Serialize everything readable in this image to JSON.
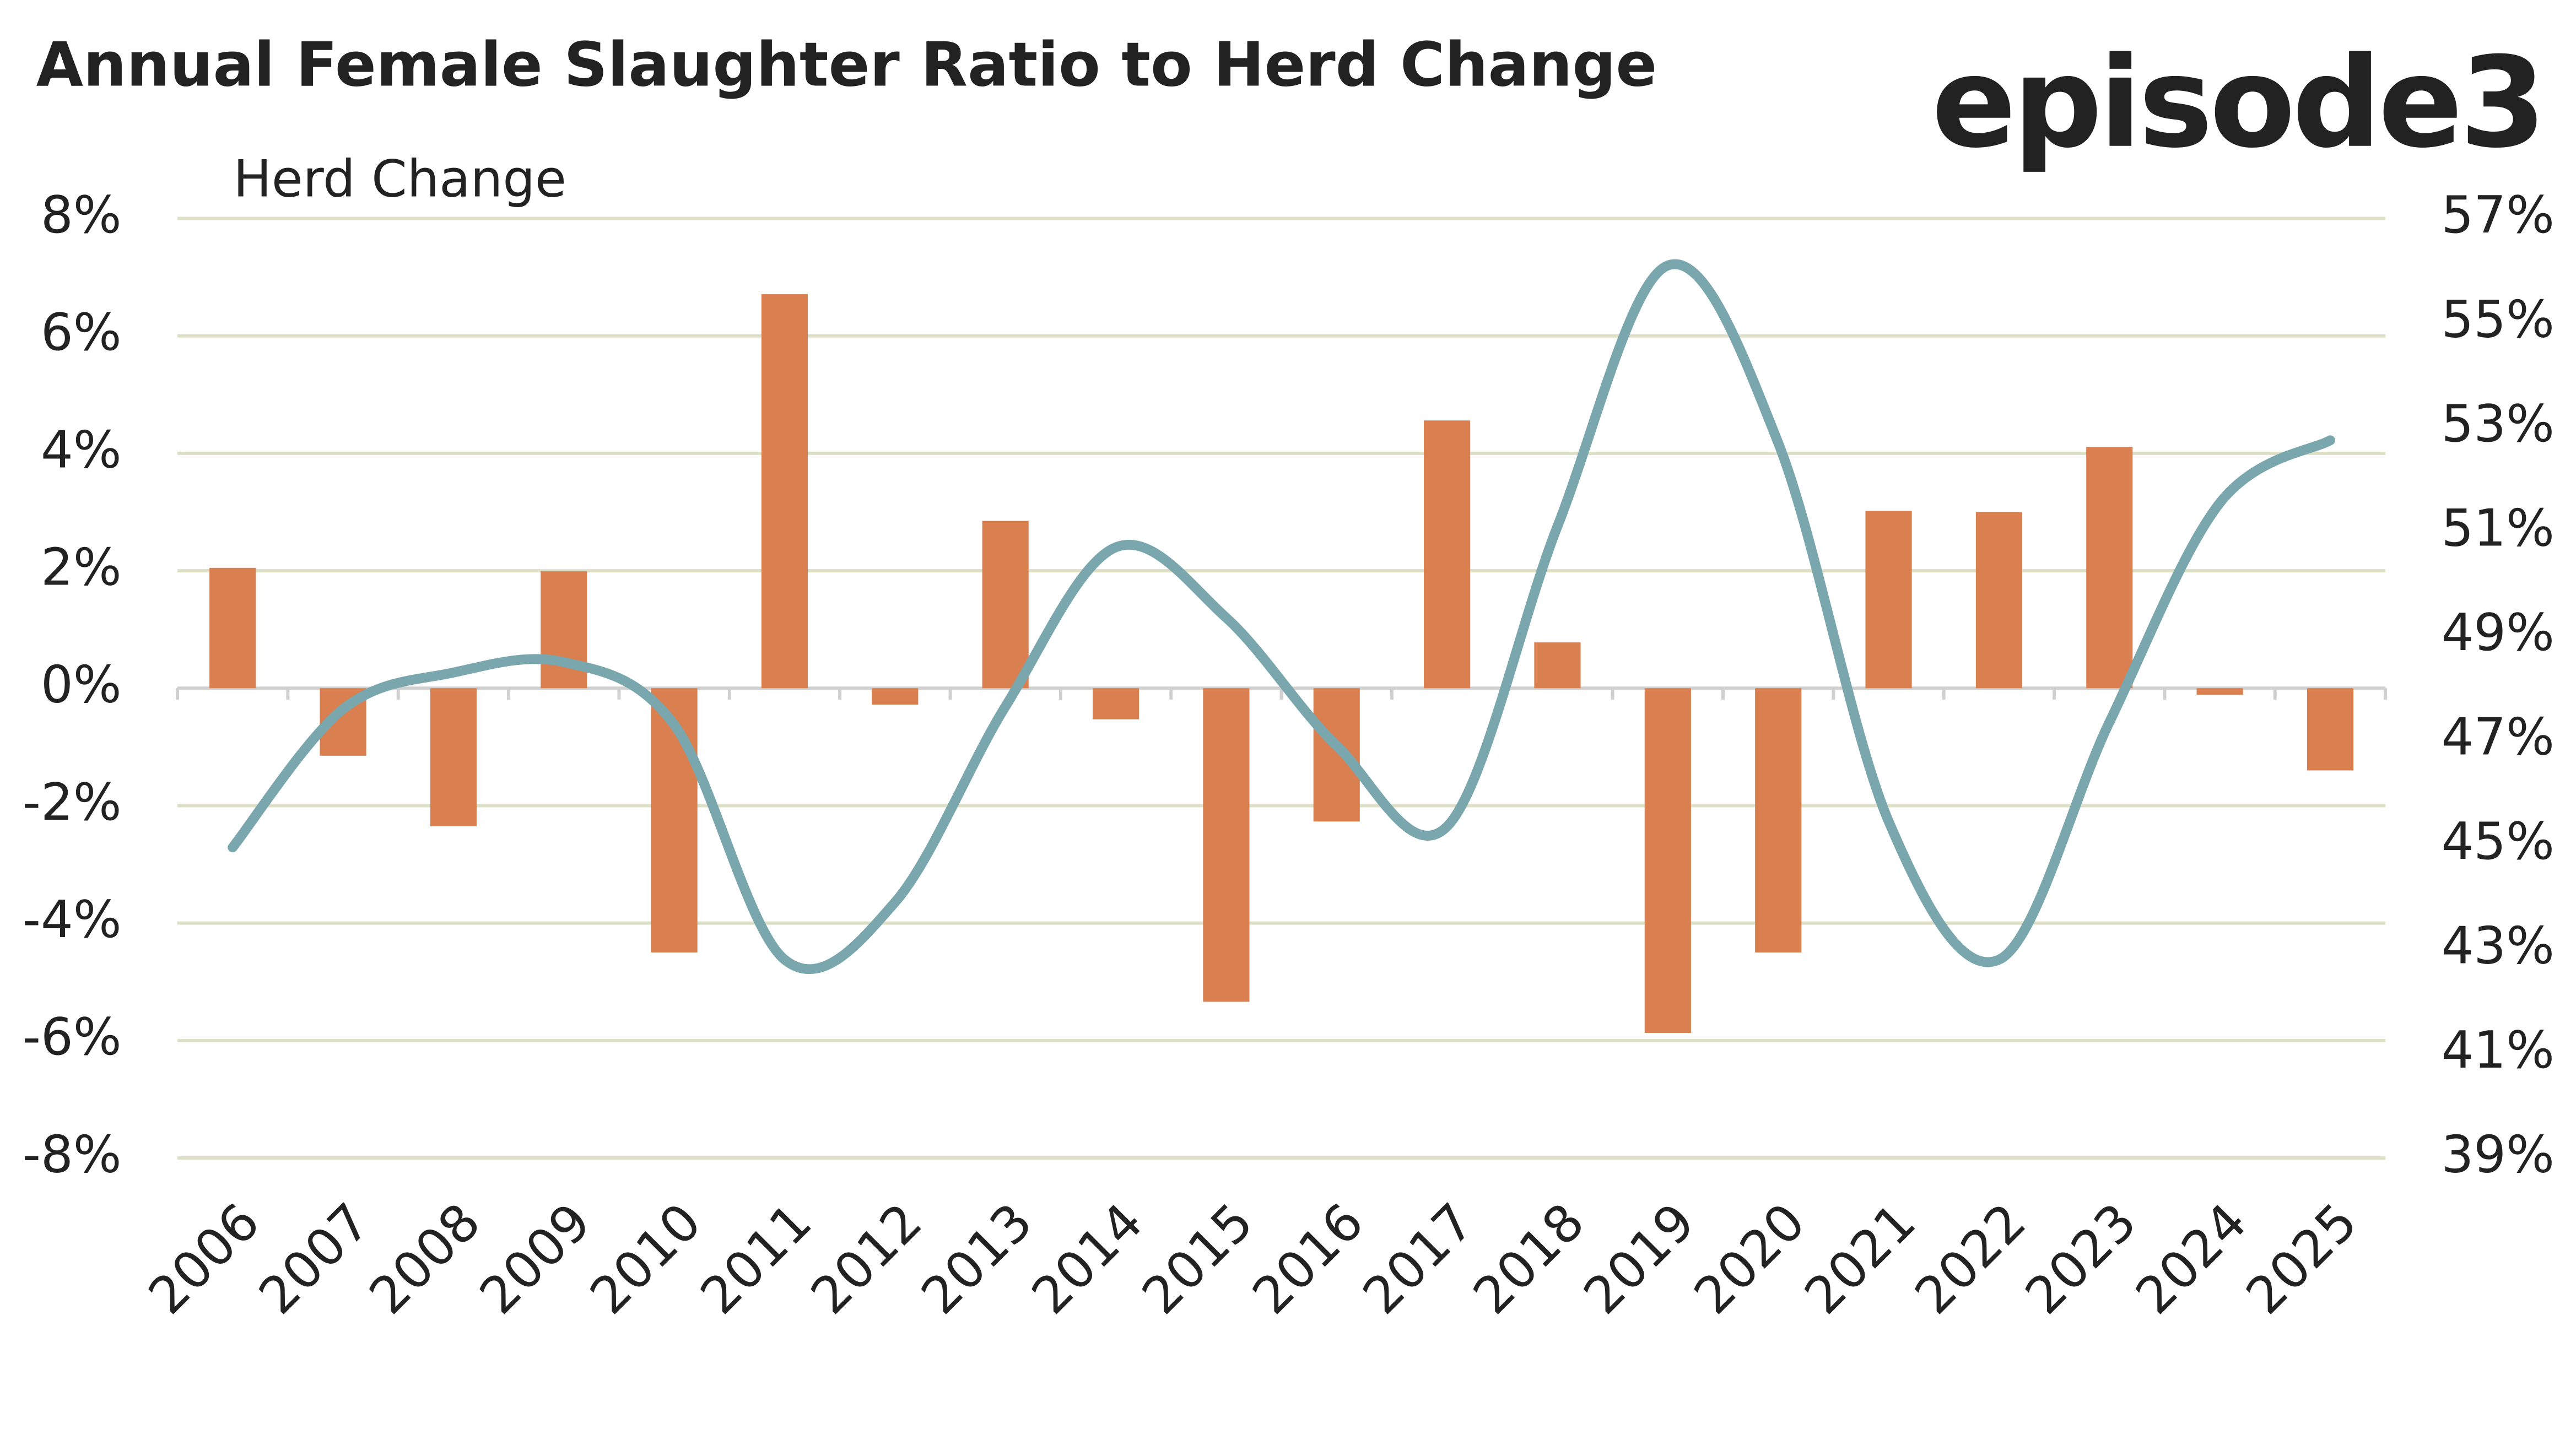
{
  "chart_data": {
    "type": "bar_line",
    "title": "Annual Female Slaughter Ratio to Herd Change",
    "brand": "episode3",
    "y_label": "Herd Change",
    "categories": [
      "2006",
      "2007",
      "2008",
      "2009",
      "2010",
      "2011",
      "2012",
      "2013",
      "2014",
      "2015",
      "2016",
      "2017",
      "2018",
      "2019",
      "2020",
      "2021",
      "2022",
      "2023",
      "2024",
      "2025"
    ],
    "series": [
      {
        "type": "bar",
        "color": "#d97f50",
        "values": [
          2.05,
          -1.15,
          -2.35,
          1.99,
          -4.5,
          6.71,
          -0.28,
          2.85,
          -0.53,
          -5.34,
          -2.27,
          4.56,
          0.78,
          -5.87,
          -4.5,
          3.02,
          3.0,
          4.11,
          -0.11,
          -1.4
        ]
      },
      {
        "type": "line",
        "axis": "y2",
        "color": "#7aa7ad",
        "values": [
          44.95,
          47.6,
          48.3,
          48.5,
          47.3,
          42.8,
          43.9,
          47.65,
          50.7,
          49.35,
          46.9,
          45.35,
          51.1,
          56.1,
          52.7,
          45.45,
          42.8,
          47.35,
          51.55,
          52.75
        ]
      }
    ],
    "ylim": [
      -8,
      8
    ],
    "yticks": [
      {
        "value": 8,
        "label": "8%"
      },
      {
        "value": 6,
        "label": "6%"
      },
      {
        "value": 4,
        "label": "4%"
      },
      {
        "value": 2,
        "label": "2%"
      },
      {
        "value": 0,
        "label": "0%"
      },
      {
        "value": -2,
        "label": "-2%"
      },
      {
        "value": -4,
        "label": "-4%"
      },
      {
        "value": -6,
        "label": "-6%"
      },
      {
        "value": -8,
        "label": "-8%"
      }
    ],
    "y2lim": [
      39,
      57
    ],
    "y2ticks": [
      {
        "value": 57,
        "label": "57%"
      },
      {
        "value": 55,
        "label": "55%"
      },
      {
        "value": 53,
        "label": "53%"
      },
      {
        "value": 51,
        "label": "51%"
      },
      {
        "value": 49,
        "label": "49%"
      },
      {
        "value": 47,
        "label": "47%"
      },
      {
        "value": 45,
        "label": "45%"
      },
      {
        "value": 43,
        "label": "43%"
      },
      {
        "value": 41,
        "label": "41%"
      },
      {
        "value": 39,
        "label": "39%"
      }
    ],
    "grid": true
  }
}
